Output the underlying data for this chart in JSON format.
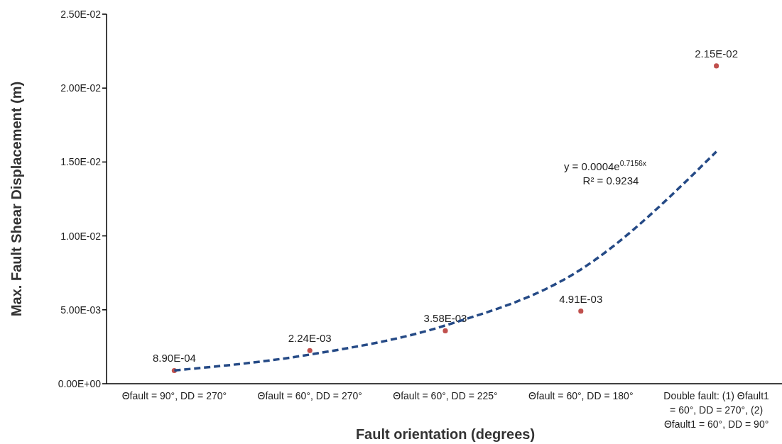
{
  "chart_data": {
    "type": "scatter",
    "xlabel": "Fault orientation (degrees)",
    "ylabel": "Max. Fault Shear Displacement (m)",
    "categories": [
      "Θfault = 90°, DD = 270°",
      "Θfault = 60°, DD = 270°",
      "Θfault = 60°, DD = 225°",
      "Θfault = 60°, DD = 180°",
      "Double fault: (1) Θfault1 = 60°, DD = 270°, (2) Θfault1 = 60°, DD = 90°"
    ],
    "series": [
      {
        "color": "#c0504d",
        "marker": "circle",
        "values": [
          0.00089,
          0.00224,
          0.00358,
          0.00491,
          0.0215
        ],
        "value_labels": [
          "8.90E-04",
          "2.24E-03",
          "3.58E-03",
          "4.91E-03",
          "2.15E-02"
        ]
      },
      {
        "type": "line",
        "color": "#254a86",
        "line_style": "dashed",
        "marker": "none",
        "values": [
          0.0009,
          0.00197,
          0.00394,
          0.00773,
          0.0157
        ]
      }
    ],
    "ylim": [
      0,
      0.025
    ],
    "yticks": [
      {
        "value": 0,
        "label": "0.00E+00"
      },
      {
        "value": 0.005,
        "label": "5.00E-03"
      },
      {
        "value": 0.01,
        "label": "1.00E-02"
      },
      {
        "value": 0.015,
        "label": "1.50E-02"
      },
      {
        "value": 0.02,
        "label": "2.00E-02"
      },
      {
        "value": 0.025,
        "label": "2.50E-02"
      }
    ],
    "annotations": [
      "y = 0.0004e$^{0.7156x}$",
      "R² = 0.9234"
    ],
    "grid": false
  }
}
